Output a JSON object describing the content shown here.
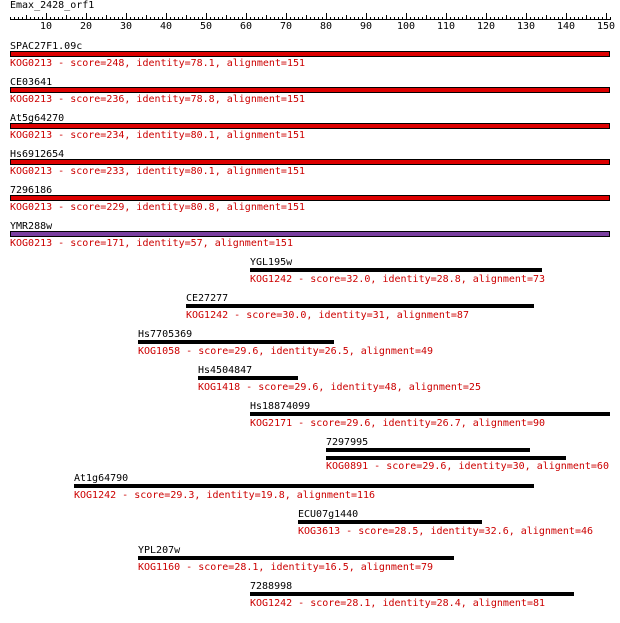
{
  "query": {
    "name": "Emax_2428_orf1",
    "length": 151
  },
  "axis": {
    "min": 1,
    "max": 151,
    "major_ticks": [
      10,
      20,
      30,
      40,
      50,
      60,
      70,
      80,
      90,
      100,
      110,
      120,
      130,
      140,
      150
    ]
  },
  "colors": {
    "annotation": "#cc0000",
    "bar_red": "#dd0000",
    "bar_purple": "#7a3fa0",
    "bar_black": "#000000"
  },
  "hits": [
    {
      "name": "SPAC27F1.09c",
      "kog": "KOG0213",
      "score": "248",
      "identity": "78.1",
      "alignment": "151",
      "start": 1,
      "end": 151,
      "style": "red"
    },
    {
      "name": "CE03641",
      "kog": "KOG0213",
      "score": "236",
      "identity": "78.8",
      "alignment": "151",
      "start": 1,
      "end": 151,
      "style": "red"
    },
    {
      "name": "At5g64270",
      "kog": "KOG0213",
      "score": "234",
      "identity": "80.1",
      "alignment": "151",
      "start": 1,
      "end": 151,
      "style": "red"
    },
    {
      "name": "Hs6912654",
      "kog": "KOG0213",
      "score": "233",
      "identity": "80.1",
      "alignment": "151",
      "start": 1,
      "end": 151,
      "style": "red"
    },
    {
      "name": "7296186",
      "kog": "KOG0213",
      "score": "229",
      "identity": "80.8",
      "alignment": "151",
      "start": 1,
      "end": 151,
      "style": "red"
    },
    {
      "name": "YMR288w",
      "kog": "KOG0213",
      "score": "171",
      "identity": "57",
      "alignment": "151",
      "start": 1,
      "end": 151,
      "style": "purple"
    },
    {
      "name": "YGL195w",
      "kog": "KOG1242",
      "score": "32.0",
      "identity": "28.8",
      "alignment": "73",
      "start": 61,
      "end": 134,
      "style": "black"
    },
    {
      "name": "CE27277",
      "kog": "KOG1242",
      "score": "30.0",
      "identity": "31",
      "alignment": "87",
      "start": 45,
      "end": 132,
      "style": "black"
    },
    {
      "name": "Hs7705369",
      "kog": "KOG1058",
      "score": "29.6",
      "identity": "26.5",
      "alignment": "49",
      "start": 33,
      "end": 82,
      "style": "black"
    },
    {
      "name": "Hs4504847",
      "kog": "KOG1418",
      "score": "29.6",
      "identity": "48",
      "alignment": "25",
      "start": 48,
      "end": 73,
      "style": "black"
    },
    {
      "name": "Hs18874099",
      "kog": "KOG2171",
      "score": "29.6",
      "identity": "26.7",
      "alignment": "90",
      "start": 61,
      "end": 151,
      "style": "black"
    },
    {
      "name": "7297995",
      "kog": "KOG0891",
      "score": "29.6",
      "identity": "30",
      "alignment": "60",
      "start": 80,
      "end": 131,
      "start2": 80,
      "end2": 140,
      "style": "black2"
    },
    {
      "name": "At1g64790",
      "kog": "KOG1242",
      "score": "29.3",
      "identity": "19.8",
      "alignment": "116",
      "start": 17,
      "end": 132,
      "style": "black"
    },
    {
      "name": "ECU07g1440",
      "kog": "KOG3613",
      "score": "28.5",
      "identity": "32.6",
      "alignment": "46",
      "start": 73,
      "end": 119,
      "style": "black"
    },
    {
      "name": "YPL207w",
      "kog": "KOG1160",
      "score": "28.1",
      "identity": "16.5",
      "alignment": "79",
      "start": 33,
      "end": 112,
      "style": "black"
    },
    {
      "name": "7288998",
      "kog": "KOG1242",
      "score": "28.1",
      "identity": "28.4",
      "alignment": "81",
      "start": 61,
      "end": 142,
      "style": "black"
    }
  ]
}
